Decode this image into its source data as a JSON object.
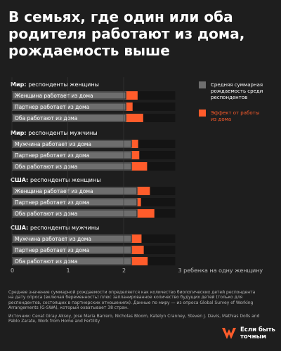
{
  "title": "В семьях, где один или оба родителя работают из дома, рождаемость выше",
  "notes": {
    "text": "Среднее значение суммарной рождаемости определяется как количество биологических детей респондента на дату опроса (включая беременность) плюс запланированное количество будущих детей (только для респондентов, состоящих в партнерских отношениях). Данные по миру — из опроса Global Survey of Working Arrangements (G-SWA), который охватывает 38 стран.",
    "source": "Источник: Cevat Giray Aksoy, Jose Maria Barrero, Nicholas Bloom, Katelyn Cranney, Steven J. Davis, Mathias Dolls and Pablo Zarate, Work from Home and Fertility"
  },
  "brand": {
    "line1": "Если быть",
    "line2": "точным"
  },
  "colors": {
    "base": "#6e6e6e",
    "effect": "#ff5c2b",
    "background": "#1e1e1e",
    "row_bg": "#141414"
  },
  "chart_data": {
    "type": "bar",
    "orientation": "horizontal",
    "stacked": true,
    "x_range": [
      0,
      3
    ],
    "x_ticks": [
      "0",
      "1",
      "2"
    ],
    "x_axis_label": "3 ребенка на одну женщину",
    "legend": {
      "position": "top-right",
      "base": "Средняя суммарная рождаемость среди респондентов",
      "effect": "Эффект от работы из дома"
    },
    "groups": [
      {
        "bold": "Мир:",
        "label": "респонденты женщины",
        "rows": [
          {
            "label": "Женщина работает из дома",
            "base": 2.05,
            "effect": 0.2
          },
          {
            "label": "Партнер работает из дома",
            "base": 2.05,
            "effect": 0.11
          },
          {
            "label": "Оба работают из дома",
            "base": 2.05,
            "effect": 0.3
          }
        ]
      },
      {
        "bold": "Мир:",
        "label": "респонденты мужчины",
        "rows": [
          {
            "label": "Мужчина работает из дома",
            "base": 2.15,
            "effect": 0.11
          },
          {
            "label": "Партнер работает из дома",
            "base": 2.15,
            "effect": 0.13
          },
          {
            "label": "Оба работают из дома",
            "base": 2.15,
            "effect": 0.27
          }
        ]
      },
      {
        "bold": "США:",
        "label": "респонденты женщины",
        "rows": [
          {
            "label": "Женщина работает из дома",
            "base": 2.25,
            "effect": 0.22
          },
          {
            "label": "Партнер работает из дома",
            "base": 2.25,
            "effect": 0.06
          },
          {
            "label": "Оба работают из дома",
            "base": 2.25,
            "effect": 0.3
          }
        ]
      },
      {
        "bold": "США:",
        "label": "респонденты мужчины",
        "rows": [
          {
            "label": "Мужчина работает из дома",
            "base": 2.15,
            "effect": 0.17
          },
          {
            "label": "Партнер работает из дома",
            "base": 2.15,
            "effect": 0.21
          },
          {
            "label": "Оба работают из дома",
            "base": 2.15,
            "effect": 0.28
          }
        ]
      }
    ]
  }
}
